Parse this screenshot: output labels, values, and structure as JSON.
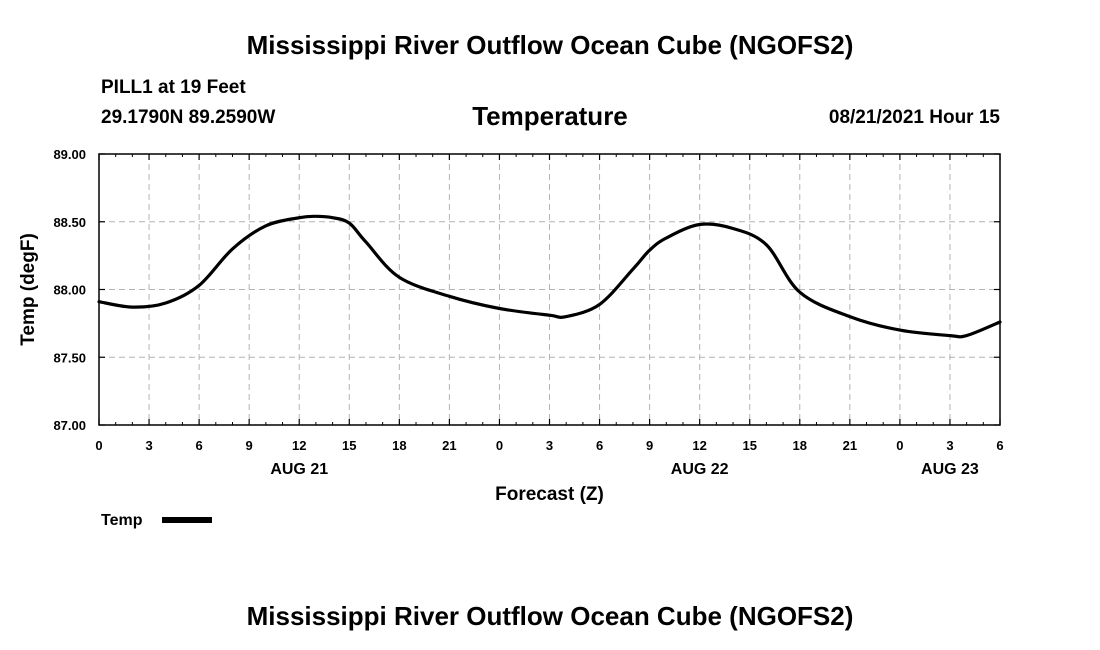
{
  "header": {
    "title": "Mississippi River Outflow Ocean Cube (NGOFS2)",
    "station": "PILL1 at 19 Feet",
    "coords": "29.1790N  89.2590W",
    "datetime": "08/21/2021 Hour 15"
  },
  "footer": {
    "title": "Mississippi River Outflow Ocean Cube (NGOFS2)"
  },
  "legend": {
    "label": "Temp"
  },
  "chart_data": {
    "type": "line",
    "title": "Temperature",
    "xlabel": "Forecast (Z)",
    "ylabel": "Temp (degF)",
    "xlim": [
      0,
      54
    ],
    "ylim": [
      87.0,
      89.0
    ],
    "grid": true,
    "x_ticks": [
      0,
      3,
      6,
      9,
      12,
      15,
      18,
      21,
      24,
      27,
      30,
      33,
      36,
      39,
      42,
      45,
      48,
      51,
      54
    ],
    "x_tick_labels": [
      "0",
      "3",
      "6",
      "9",
      "12",
      "15",
      "18",
      "21",
      "0",
      "3",
      "6",
      "9",
      "12",
      "15",
      "18",
      "21",
      "0",
      "3",
      "6"
    ],
    "y_ticks": [
      87.0,
      87.5,
      88.0,
      88.5,
      89.0
    ],
    "y_tick_labels": [
      "87.00",
      "87.50",
      "88.00",
      "88.50",
      "89.00"
    ],
    "day_labels": [
      {
        "x": 12,
        "label": "AUG 21"
      },
      {
        "x": 36,
        "label": "AUG 22"
      },
      {
        "x": 51,
        "label": "AUG 23"
      }
    ],
    "series": [
      {
        "name": "Temp",
        "color": "#000000",
        "x": [
          0,
          2,
          4,
          6,
          8,
          10,
          12,
          13,
          14,
          15,
          16,
          18,
          21,
          24,
          27,
          28,
          30,
          32,
          33,
          34,
          36,
          38,
          40,
          42,
          45,
          48,
          51,
          52,
          54
        ],
        "y": [
          87.91,
          87.87,
          87.9,
          88.03,
          88.3,
          88.47,
          88.53,
          88.54,
          88.53,
          88.49,
          88.35,
          88.09,
          87.95,
          87.86,
          87.81,
          87.8,
          87.89,
          88.15,
          88.29,
          88.38,
          88.48,
          88.45,
          88.33,
          87.98,
          87.8,
          87.7,
          87.66,
          87.66,
          87.76
        ]
      }
    ]
  }
}
